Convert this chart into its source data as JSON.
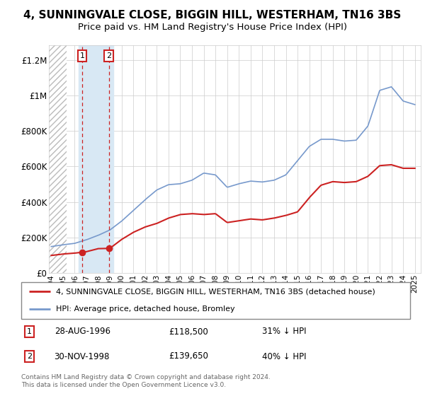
{
  "title": "4, SUNNINGVALE CLOSE, BIGGIN HILL, WESTERHAM, TN16 3BS",
  "subtitle": "Price paid vs. HM Land Registry's House Price Index (HPI)",
  "title_fontsize": 11,
  "subtitle_fontsize": 9.5,
  "red_line_color": "#cc2222",
  "blue_line_color": "#7799cc",
  "transaction1_date": 1996.65,
  "transaction1_price": 118500,
  "transaction2_date": 1998.91,
  "transaction2_price": 139650,
  "transactions": [
    {
      "label": "1",
      "date_str": "28-AUG-1996",
      "price": "£118,500",
      "pct": "31% ↓ HPI",
      "year": 1996.65
    },
    {
      "label": "2",
      "date_str": "30-NOV-1998",
      "price": "£139,650",
      "pct": "40% ↓ HPI",
      "year": 1998.91
    }
  ],
  "legend_line1": "4, SUNNINGVALE CLOSE, BIGGIN HILL, WESTERHAM, TN16 3BS (detached house)",
  "legend_line2": "HPI: Average price, detached house, Bromley",
  "copyright_text": "Contains HM Land Registry data © Crown copyright and database right 2024.\nThis data is licensed under the Open Government Licence v3.0.",
  "ylim": [
    0,
    1280000
  ],
  "yticks": [
    0,
    200000,
    400000,
    600000,
    800000,
    1000000,
    1200000
  ],
  "ytick_labels": [
    "£0",
    "£200K",
    "£400K",
    "£600K",
    "£800K",
    "£1M",
    "£1.2M"
  ],
  "xmin": 1993.8,
  "xmax": 2025.5,
  "hatch_end": 1995.3,
  "bg_color": "#ffffff",
  "hatch_color": "#bbbbbb",
  "highlight_color": "#d8e8f4"
}
